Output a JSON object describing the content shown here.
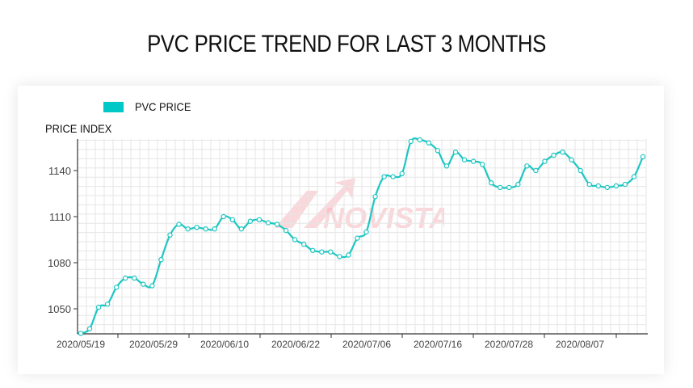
{
  "title": "PVC PRICE TREND FOR LAST 3 MONTHS",
  "legend": {
    "label": "PVC PRICE",
    "color": "#00c8c6"
  },
  "watermark": "NOVISTA",
  "chart_data": {
    "type": "line",
    "title": "PVC PRICE TREND FOR LAST 3 MONTHS",
    "xlabel": "",
    "ylabel": "PRICE INDEX",
    "ylim": [
      1033,
      1161
    ],
    "grid": true,
    "legend_position": "top-left",
    "x_tick_labels": [
      "2020/05/19",
      "2020/05/29",
      "2020/06/10",
      "2020/06/22",
      "2020/07/06",
      "2020/07/16",
      "2020/07/28",
      "2020/08/07"
    ],
    "y_ticks": [
      1050,
      1080,
      1110,
      1140
    ],
    "series": [
      {
        "name": "PVC PRICE",
        "color": "#00c8c6",
        "values": [
          1034,
          1037,
          1051,
          1053,
          1064,
          1070,
          1070,
          1066,
          1065,
          1082,
          1098,
          1105,
          1102,
          1103,
          1102,
          1102,
          1110,
          1108,
          1102,
          1107,
          1108,
          1106,
          1105,
          1101,
          1095,
          1092,
          1088,
          1087,
          1087,
          1084,
          1085,
          1096,
          1100,
          1123,
          1136,
          1136,
          1138,
          1159,
          1160,
          1158,
          1153,
          1143,
          1152,
          1147,
          1146,
          1144,
          1132,
          1129,
          1129,
          1131,
          1143,
          1140,
          1146,
          1150,
          1152,
          1147,
          1140,
          1131,
          1130,
          1129,
          1130,
          1131,
          1136,
          1149
        ]
      }
    ]
  }
}
